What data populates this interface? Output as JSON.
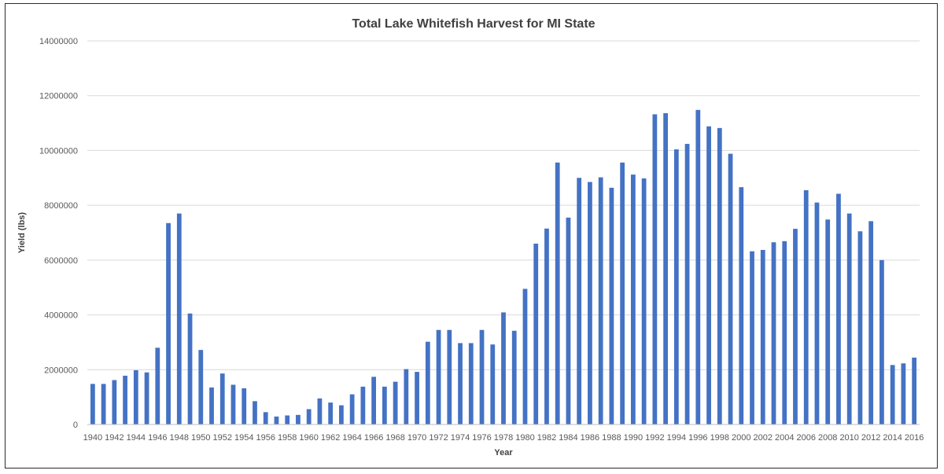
{
  "chart_data": {
    "type": "bar",
    "title": "Total Lake Whitefish Harvest for MI State",
    "xlabel": "Year",
    "ylabel": "Yield (lbs)",
    "ylim": [
      0,
      14000000
    ],
    "yticks": [
      "0",
      "2000000",
      "4000000",
      "6000000",
      "8000000",
      "10000000",
      "12000000",
      "14000000"
    ],
    "grid": true,
    "legend": "none",
    "colors": {
      "bar": "#4472C4",
      "grid": "#d9d9d9",
      "axis": "#bfbfbf"
    },
    "categories": [
      "1940",
      "1941",
      "1942",
      "1943",
      "1944",
      "1945",
      "1946",
      "1947",
      "1948",
      "1949",
      "1950",
      "1951",
      "1952",
      "1953",
      "1954",
      "1955",
      "1956",
      "1957",
      "1958",
      "1959",
      "1960",
      "1961",
      "1962",
      "1963",
      "1964",
      "1965",
      "1966",
      "1967",
      "1968",
      "1969",
      "1970",
      "1971",
      "1972",
      "1973",
      "1974",
      "1975",
      "1976",
      "1977",
      "1978",
      "1979",
      "1980",
      "1981",
      "1982",
      "1983",
      "1984",
      "1985",
      "1986",
      "1987",
      "1988",
      "1989",
      "1990",
      "1991",
      "1992",
      "1993",
      "1994",
      "1995",
      "1996",
      "1997",
      "1998",
      "1999",
      "2000",
      "2001",
      "2002",
      "2003",
      "2004",
      "2005",
      "2006",
      "2007",
      "2008",
      "2009",
      "2010",
      "2011",
      "2012",
      "2013",
      "2014",
      "2015",
      "2016"
    ],
    "tick_labels": [
      "1940",
      "1942",
      "1944",
      "1946",
      "1948",
      "1950",
      "1952",
      "1954",
      "1956",
      "1958",
      "1960",
      "1962",
      "1964",
      "1966",
      "1968",
      "1970",
      "1972",
      "1974",
      "1976",
      "1978",
      "1980",
      "1982",
      "1984",
      "1986",
      "1988",
      "1990",
      "1992",
      "1994",
      "1996",
      "1998",
      "2000",
      "2002",
      "2004",
      "2006",
      "2008",
      "2010",
      "2012",
      "2014",
      "2016"
    ],
    "values": [
      1480000,
      1480000,
      1620000,
      1780000,
      1980000,
      1900000,
      2800000,
      7350000,
      7700000,
      4050000,
      2720000,
      1350000,
      1860000,
      1450000,
      1320000,
      850000,
      450000,
      290000,
      330000,
      350000,
      560000,
      950000,
      800000,
      700000,
      1100000,
      1380000,
      1740000,
      1380000,
      1560000,
      2020000,
      1920000,
      3020000,
      3450000,
      3450000,
      2970000,
      2970000,
      3450000,
      2920000,
      4090000,
      3420000,
      4950000,
      6600000,
      7150000,
      9560000,
      7550000,
      9000000,
      8850000,
      9020000,
      8640000,
      9560000,
      9120000,
      8980000,
      11320000,
      11360000,
      10040000,
      10240000,
      11480000,
      10880000,
      10820000,
      9880000,
      8660000,
      6320000,
      6370000,
      6650000,
      6690000,
      7140000,
      8550000,
      8100000,
      7480000,
      8420000,
      7700000,
      7050000,
      7420000,
      6000000,
      2170000,
      2230000,
      2440000
    ]
  }
}
